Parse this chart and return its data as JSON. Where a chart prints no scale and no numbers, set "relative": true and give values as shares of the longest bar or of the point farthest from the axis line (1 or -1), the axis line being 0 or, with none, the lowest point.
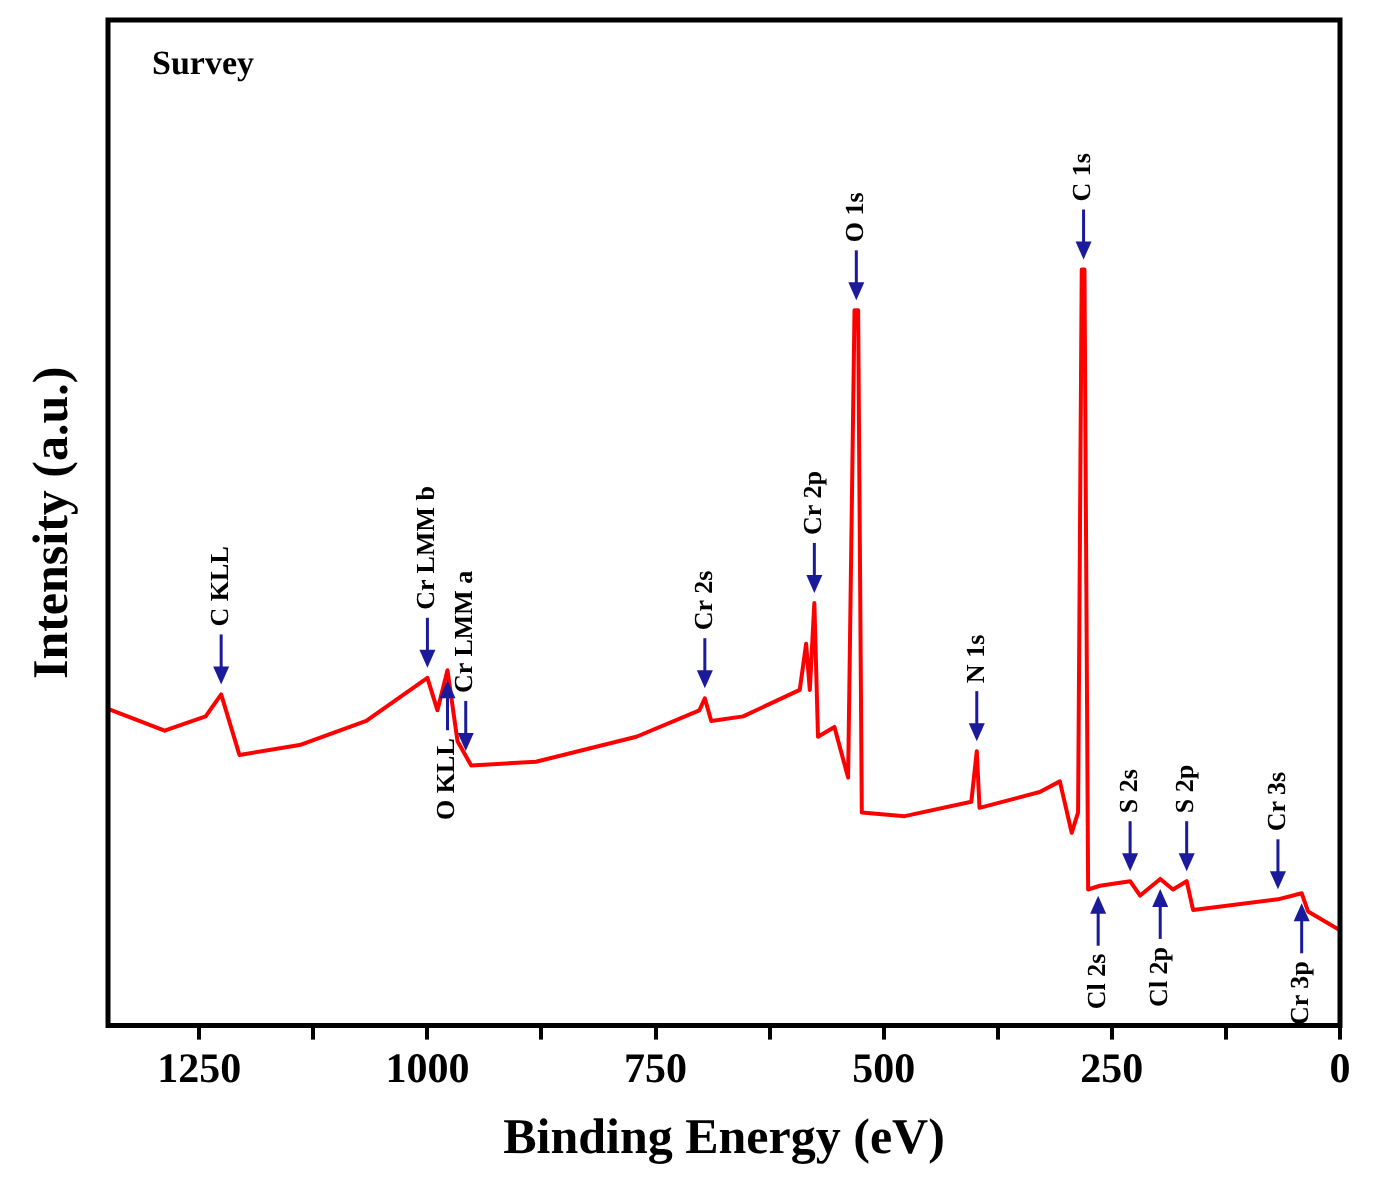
{
  "chart_data": {
    "type": "line",
    "title": "Survey",
    "xlabel": "Binding Energy (eV)",
    "ylabel": "Intensity (a.u.)",
    "relative": true,
    "xlim": [
      1350,
      0
    ],
    "xticks": [
      1250,
      {
        "value": 1125,
        "label": null
      },
      1000,
      {
        "value": 875,
        "label": null
      },
      750,
      {
        "value": 625,
        "label": null
      },
      500,
      {
        "value": 375,
        "label": null
      },
      250,
      {
        "value": 125,
        "label": null
      },
      0
    ],
    "grid": false,
    "legend": false,
    "marker": "none",
    "line_style": "solid",
    "tick_labels": "x",
    "series": [
      {
        "color": "#ff0000",
        "x": [
          1350,
          1288,
          1243,
          1226,
          1206,
          1140,
          1067,
          1000,
          989,
          978,
          967,
          952,
          881,
          771,
          702,
          696,
          689,
          654,
          592,
          585,
          581,
          576,
          572,
          554,
          539,
          532,
          528,
          524,
          477,
          404,
          398,
          395,
          329,
          307,
          294,
          287,
          283,
          280,
          276,
          263,
          230,
          219,
          197,
          183,
          168,
          161,
          68,
          42,
          35,
          0
        ],
        "values": [
          0.419,
          0.39,
          0.409,
          0.438,
          0.358,
          0.371,
          0.403,
          0.46,
          0.417,
          0.47,
          0.376,
          0.344,
          0.349,
          0.382,
          0.417,
          0.433,
          0.403,
          0.409,
          0.444,
          0.505,
          0.444,
          0.559,
          0.382,
          0.395,
          0.328,
          0.946,
          0.946,
          0.282,
          0.277,
          0.296,
          0.363,
          0.288,
          0.309,
          0.323,
          0.255,
          0.282,
          1.0,
          1.0,
          0.18,
          0.185,
          0.191,
          0.172,
          0.194,
          0.18,
          0.191,
          0.153,
          0.167,
          0.175,
          0.151,
          0.126
        ]
      }
    ],
    "annotations": [
      {
        "text": "C KLL",
        "x": 1226,
        "y": 0.438
      },
      {
        "text": "Cr LMM b",
        "x": 1000,
        "y": 0.46
      },
      {
        "text": "O KLL",
        "x": 978,
        "y": 0.47
      },
      {
        "text": "Cr LMM a",
        "x": 958,
        "y": 0.35
      },
      {
        "text": "Cr 2s",
        "x": 696,
        "y": 0.433
      },
      {
        "text": "Cr 2p",
        "x": 576,
        "y": 0.559
      },
      {
        "text": "O 1s",
        "x": 530,
        "y": 0.946
      },
      {
        "text": "N 1s",
        "x": 398,
        "y": 0.363
      },
      {
        "text": "C 1s",
        "x": 281,
        "y": 1.0
      },
      {
        "text": "Cl 2s",
        "x": 265,
        "y": 0.185
      },
      {
        "text": "S 2s",
        "x": 230,
        "y": 0.191
      },
      {
        "text": "Cl 2p",
        "x": 197,
        "y": 0.194
      },
      {
        "text": "S 2p",
        "x": 168,
        "y": 0.191
      },
      {
        "text": "Cr 3s",
        "x": 68,
        "y": 0.167
      },
      {
        "text": "Cr 3p",
        "x": 42,
        "y": 0.175
      }
    ]
  }
}
